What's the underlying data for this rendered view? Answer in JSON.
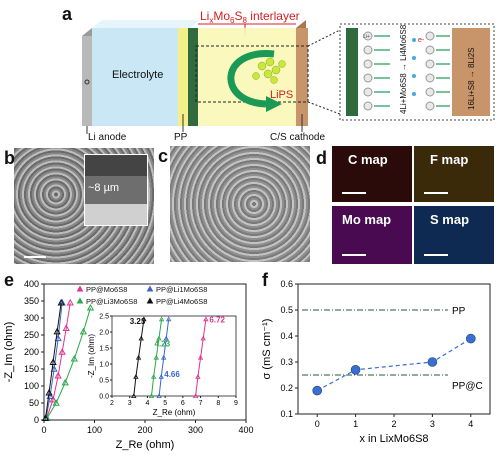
{
  "panels": {
    "a": "a",
    "b": "b",
    "c": "c",
    "d": "d",
    "e": "e",
    "f": "f"
  },
  "schematic": {
    "interlayer_title_pre": "Li",
    "interlayer_title_sub1": "x",
    "interlayer_title_mid": "Mo",
    "interlayer_title_sub2": "6",
    "interlayer_title_s": "S",
    "interlayer_title_sub3": "8",
    "interlayer_title_post": " interlayer",
    "electrolyte": "Electrolyte",
    "lips": "LiPS",
    "li_anode": "Li anode",
    "pp": "PP",
    "cathode": "C/S cathode",
    "ion_label": "Li+",
    "electron_label": "e-",
    "reaction_left": "4Li+Mo6S8 → Li4Mo6S8",
    "reaction_right": "16Li+S8 → 8Li2S",
    "colors": {
      "electrolyte": "#bfe3f3",
      "pp": "#f3f08a",
      "cathode": "#c8946a",
      "interlayer": "#2f6b3e",
      "arrow": "#1a9a55",
      "title": "#d42020"
    }
  },
  "micrographs": {
    "b_thickness": "~8 µm"
  },
  "maps": [
    {
      "label": "C map",
      "color": "#a81818"
    },
    {
      "label": "F map",
      "color": "#b8820e"
    },
    {
      "label": "Mo map",
      "color": "#c020c8"
    },
    {
      "label": "S map",
      "color": "#3a78c8"
    }
  ],
  "chart_data": [
    {
      "panel": "e",
      "type": "scatter",
      "xlabel": "Z_Re (ohm)",
      "ylabel": "-Z_Im (ohm)",
      "xlim": [
        0,
        400
      ],
      "ylim": [
        0,
        400
      ],
      "xticks": [
        "0",
        "100",
        "200",
        "300",
        "400"
      ],
      "yticks": [
        "0",
        "50",
        "100",
        "150",
        "200",
        "250",
        "300",
        "350",
        "400"
      ],
      "series": [
        {
          "name": "PP@Mo6S8",
          "color": "#e0338c",
          "marker": "triangle-up",
          "x": [
            5,
            18,
            28,
            36,
            44,
            52
          ],
          "y": [
            5,
            60,
            130,
            200,
            270,
            345
          ]
        },
        {
          "name": "PP@Li1Mo6S8",
          "color": "#3a66c8",
          "marker": "triangle-up",
          "x": [
            4,
            12,
            20,
            28,
            36
          ],
          "y": [
            5,
            70,
            150,
            240,
            345
          ]
        },
        {
          "name": "PP@Li3Mo6S8",
          "color": "#2aa84a",
          "marker": "triangle-up",
          "x": [
            6,
            24,
            42,
            60,
            78,
            92
          ],
          "y": [
            5,
            50,
            110,
            180,
            260,
            330
          ]
        },
        {
          "name": "PP@Li4Mo6S8",
          "color": "#111111",
          "marker": "triangle-up",
          "x": [
            3,
            10,
            18,
            26,
            34
          ],
          "y": [
            5,
            80,
            170,
            260,
            345
          ]
        }
      ],
      "inset": {
        "xlabel": "Z_Re (ohm)",
        "ylabel": "-Z_Im (ohm)",
        "xlim": [
          2,
          9
        ],
        "ylim": [
          0,
          2.5
        ],
        "xticks": [
          "2",
          "3",
          "4",
          "5",
          "6",
          "7",
          "8",
          "9"
        ],
        "yticks": [
          "0.0",
          "0.5",
          "1.0",
          "1.5",
          "2.0",
          "2.5"
        ],
        "annotations": [
          "3.23",
          "4.23",
          "4.66",
          "6.72"
        ],
        "series": [
          {
            "name": "PP@Li4Mo6S8",
            "color": "#111111",
            "x": [
              3.23,
              3.35,
              3.5,
              3.65,
              3.8
            ],
            "y": [
              0.0,
              0.6,
              1.2,
              1.8,
              2.4
            ]
          },
          {
            "name": "PP@Li3Mo6S8",
            "color": "#2aa84a",
            "x": [
              4.23,
              4.35,
              4.5,
              4.65,
              4.8
            ],
            "y": [
              0.0,
              0.6,
              1.2,
              1.8,
              2.4
            ]
          },
          {
            "name": "PP@Li1Mo6S8",
            "color": "#3a66c8",
            "x": [
              4.66,
              4.78,
              4.92,
              5.06,
              5.2
            ],
            "y": [
              0.0,
              0.6,
              1.2,
              1.8,
              2.4
            ]
          },
          {
            "name": "PP@Mo6S8",
            "color": "#e0338c",
            "x": [
              6.72,
              6.85,
              7.0,
              7.15,
              7.3
            ],
            "y": [
              0.0,
              0.6,
              1.2,
              1.8,
              2.4
            ]
          }
        ]
      }
    },
    {
      "panel": "f",
      "type": "line",
      "xlabel": "x in LixMo6S8",
      "ylabel": "σ (mS cm⁻¹)",
      "xlim": [
        -0.5,
        4.5
      ],
      "ylim": [
        0.1,
        0.6
      ],
      "xticks": [
        "0",
        "1",
        "2",
        "3",
        "4"
      ],
      "yticks": [
        "0.1",
        "0.2",
        "0.3",
        "0.4",
        "0.5",
        "0.6"
      ],
      "series": [
        {
          "name": "",
          "color": "#3a6fd0",
          "x": [
            0,
            1,
            3,
            4
          ],
          "y": [
            0.19,
            0.27,
            0.3,
            0.39
          ]
        }
      ],
      "reference_lines": [
        {
          "label": "PP",
          "y": 0.5
        },
        {
          "label": "PP@C",
          "y": 0.25
        }
      ]
    }
  ]
}
